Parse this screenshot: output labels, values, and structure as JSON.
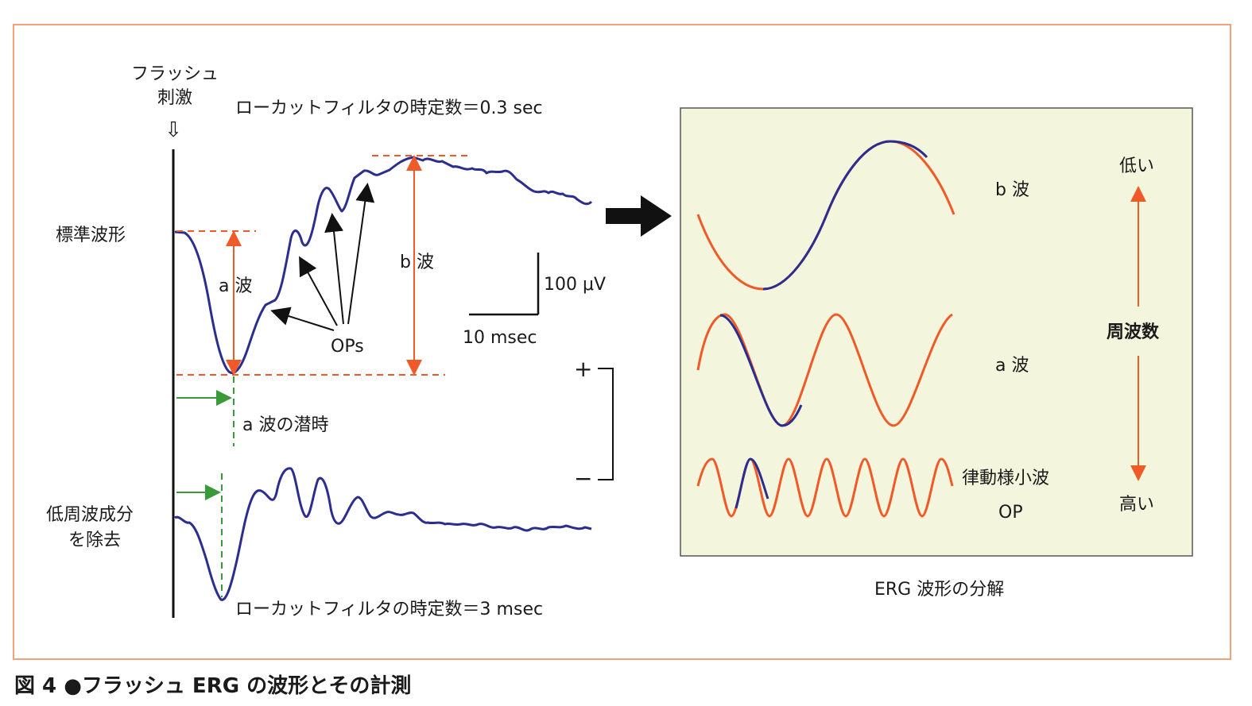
{
  "figure": {
    "caption": "図 4 ●フラッシュ ERG の波形とその計測"
  },
  "left_panel": {
    "stimulus_label_line1": "フラッシュ",
    "stimulus_label_line2": "刺激",
    "stimulus_arrow_glyph": "⇩",
    "filter_top": "ローカットフィルタの時定数＝0.3 sec",
    "filter_bottom": "ローカットフィルタの時定数＝3 msec",
    "standard_label": "標準波形",
    "lowfreq_label_line1": "低周波成分",
    "lowfreq_label_line2": "を除去",
    "a_wave": "a 波",
    "b_wave": "b 波",
    "ops": "OPs",
    "a_latency": "a 波の潜時",
    "scale_voltage": "100 μV",
    "scale_time": "10 msec",
    "plus": "+",
    "minus": "−"
  },
  "right_panel": {
    "title": "ERG 波形の分解",
    "b_wave": "b 波",
    "a_wave": "a 波",
    "op_line1": "律動様小波",
    "op_line2": "OP",
    "freq_low": "低い",
    "freq_label": "周波数",
    "freq_high": "高い"
  },
  "colors": {
    "trace": "#2b2d8f",
    "measure": "#f05a28",
    "latency": "#3a9a3a",
    "panel_bg": "#f3f5dc",
    "border": "#f2a27a"
  }
}
